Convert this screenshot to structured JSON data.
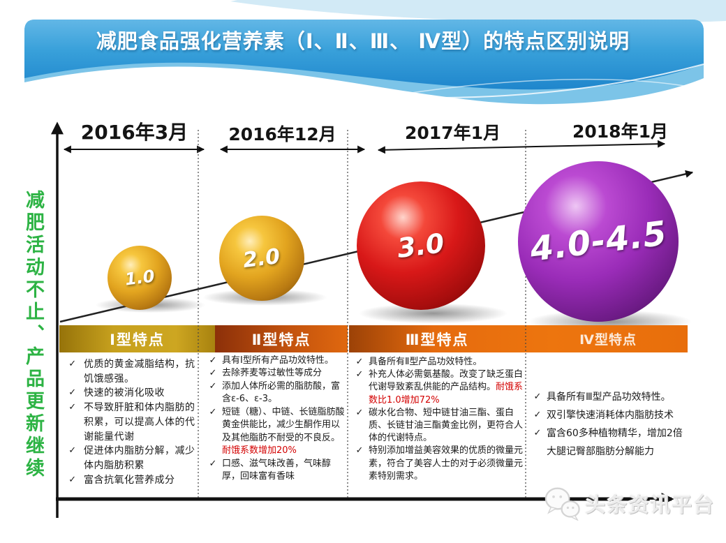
{
  "banner": {
    "title": "减肥食品强化营养素（Ⅰ、Ⅱ、Ⅲ、 Ⅳ型）的特点区别说明"
  },
  "side_label": "减肥活动不止、产品更新继续",
  "watermark": {
    "label": "头条资讯平台",
    "logo": "chat-bubbles-icon"
  },
  "colors": {
    "banner_blue": "#2a8fd0",
    "type1_gold": "#c7a11e",
    "type2_orange_red": "#c2520e",
    "type34_orange": "#e86e0c",
    "sphere_gold": "#e2a41f",
    "sphere_red": "#d81818",
    "sphere_purple": "#9a2cb8",
    "side_green": "#2db344",
    "highlight_red": "#d30000"
  },
  "chart_data": {
    "type": "timeline-bubble-diagram",
    "x_periods": [
      "2016年3月",
      "2016年12月",
      "2017年1月",
      "2018年1月"
    ],
    "versions": [
      {
        "label": "1.0",
        "period": "2016年3月",
        "color": "#e2a41f",
        "relative_size": 1
      },
      {
        "label": "2.0",
        "period": "2016年12月",
        "color": "#e2a41f",
        "relative_size": 2
      },
      {
        "label": "3.0",
        "period": "2017年1月",
        "color": "#d81818",
        "relative_size": 3
      },
      {
        "label": "4.0-4.5",
        "period": "2018年1月",
        "color": "#9a2cb8",
        "relative_size": 4.25
      }
    ],
    "trend": "increasing (diagonal arrow rising left to right)",
    "title": "减肥食品强化营养素（Ⅰ、Ⅱ、Ⅲ、 Ⅳ型）的特点区别说明"
  },
  "table": {
    "check_glyph": "✓",
    "columns": [
      {
        "header": "Ⅰ型特点",
        "items": [
          {
            "text": "优质的黄金减脂结构，抗饥饿感强。"
          },
          {
            "text": "快速的被消化吸收"
          },
          {
            "text": "不导致肝脏和体内脂肪的积累，可以提高人体的代谢能量代谢"
          },
          {
            "text": "促进体内脂肪分解，减少体内脂肪积累"
          },
          {
            "text": "富含抗氧化营养成分"
          }
        ]
      },
      {
        "header": "Ⅱ型特点",
        "items": [
          {
            "text": "具有Ⅰ型所有产品功效特性。"
          },
          {
            "text": "去除荞麦等过敏性等成分"
          },
          {
            "text": "添加人体所必需的脂肪酸，富含ε-6、ε-3。"
          },
          {
            "text": "短链（糖）、中链、长链脂肪酸黄金供能比，减少生酮作用以及其他脂肪不耐受的不良反。",
            "highlight": "耐饿系数增加20%"
          },
          {
            "text": "口感、滋气味改善，气味醇厚，回味富有香味"
          }
        ]
      },
      {
        "header": "Ⅲ型特点",
        "items": [
          {
            "text": "具备所有Ⅱ型产品功效特性。"
          },
          {
            "text": "补充人体必需氨基酸。改变了缺乏蛋白代谢导致紊乱供能的产品结构。",
            "highlight": "耐饿系数比1.0增加72%"
          },
          {
            "text": "碳水化合物、短中链甘油三酯、蛋白质、长链甘油三酯黄金比例，更符合人体的代谢特点。"
          },
          {
            "text": "特别添加增益美容效果的优质的微量元素，符合了美容人士的对于必须微量元素特别需求。"
          }
        ]
      },
      {
        "header": "Ⅳ型特点",
        "items": [
          {
            "text": "具备所有Ⅲ型产品功效特性。"
          },
          {
            "text": "双引擎快速消耗体内脂肪技术"
          },
          {
            "text": "富含60多种植物精华，增加2倍大腿记臀部脂肪分解能力"
          }
        ]
      }
    ]
  }
}
